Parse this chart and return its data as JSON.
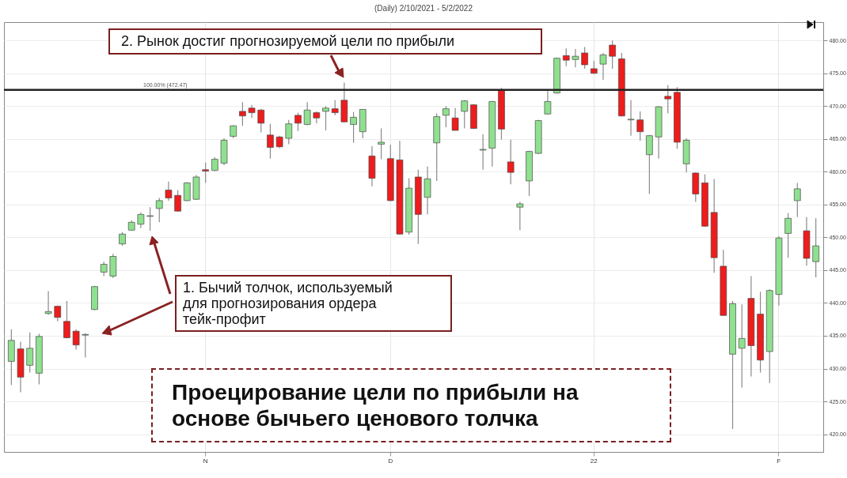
{
  "chart_data": {
    "type": "candlestick",
    "title": "(Daily) 2/10/2021 - 5/2/2022",
    "categories": [
      null,
      null,
      null,
      null,
      null,
      null,
      null,
      null,
      null,
      null,
      null,
      null,
      null,
      null,
      null,
      null,
      null,
      null,
      null,
      null,
      null,
      "N",
      null,
      null,
      null,
      null,
      null,
      null,
      null,
      null,
      null,
      null,
      null,
      null,
      null,
      null,
      null,
      null,
      null,
      null,
      null,
      "D",
      null,
      null,
      null,
      null,
      null,
      null,
      null,
      null,
      null,
      null,
      null,
      null,
      null,
      null,
      null,
      null,
      null,
      null,
      null,
      null,
      null,
      "22",
      null,
      null,
      null,
      null,
      null,
      null,
      null,
      null,
      null,
      null,
      null,
      null,
      null,
      null,
      null,
      null,
      null,
      null,
      null,
      "F",
      null,
      null,
      null,
      null
    ],
    "ohlc": [
      [
        431.1,
        436.0,
        427.5,
        434.3
      ],
      [
        433.0,
        434.1,
        426.4,
        428.7
      ],
      [
        430.5,
        435.5,
        429.4,
        433.1
      ],
      [
        429.3,
        435.3,
        427.6,
        434.9
      ],
      [
        438.4,
        441.8,
        438.2,
        438.7
      ],
      [
        439.5,
        439.6,
        437.2,
        437.8
      ],
      [
        437.2,
        440.3,
        434.6,
        434.7
      ],
      [
        435.7,
        436.0,
        432.9,
        433.6
      ],
      [
        435.1,
        435.4,
        431.7,
        435.2
      ],
      [
        439.0,
        442.6,
        438.9,
        442.5
      ],
      [
        444.7,
        446.3,
        444.1,
        445.9
      ],
      [
        444.1,
        447.5,
        443.8,
        447.1
      ],
      [
        449.0,
        450.8,
        448.7,
        450.5
      ],
      [
        451.1,
        452.6,
        451.0,
        452.3
      ],
      [
        452.0,
        453.8,
        451.4,
        453.5
      ],
      [
        453.2,
        454.6,
        451.0,
        453.3
      ],
      [
        454.4,
        456.0,
        452.3,
        455.6
      ],
      [
        457.2,
        458.5,
        455.6,
        456.0
      ],
      [
        456.4,
        457.2,
        453.9,
        454.0
      ],
      [
        455.6,
        458.4,
        455.5,
        458.3
      ],
      [
        455.8,
        459.5,
        455.7,
        459.2
      ],
      [
        460.3,
        461.4,
        458.3,
        460.1
      ],
      [
        460.2,
        462.2,
        460.1,
        461.9
      ],
      [
        461.3,
        465.1,
        461.0,
        464.8
      ],
      [
        465.4,
        467.1,
        465.1,
        467.0
      ],
      [
        469.2,
        470.6,
        467.0,
        468.5
      ],
      [
        469.7,
        470.2,
        468.2,
        469.0
      ],
      [
        469.4,
        469.6,
        466.0,
        467.4
      ],
      [
        465.6,
        467.3,
        462.0,
        463.7
      ],
      [
        465.3,
        465.5,
        463.6,
        463.8
      ],
      [
        465.1,
        467.9,
        464.2,
        467.3
      ],
      [
        468.6,
        469.0,
        466.2,
        467.4
      ],
      [
        467.2,
        470.6,
        467.1,
        469.4
      ],
      [
        469.0,
        469.2,
        467.4,
        468.2
      ],
      [
        469.2,
        470.0,
        466.3,
        469.7
      ],
      [
        469.6,
        470.9,
        468.6,
        469.0
      ],
      [
        470.9,
        473.6,
        467.5,
        467.6
      ],
      [
        467.2,
        469.1,
        464.4,
        468.3
      ],
      [
        466.1,
        469.5,
        465.1,
        469.5
      ],
      [
        462.4,
        463.9,
        457.8,
        459.0
      ],
      [
        464.2,
        466.6,
        461.9,
        464.5
      ],
      [
        462.0,
        464.1,
        455.5,
        455.6
      ],
      [
        461.8,
        464.7,
        450.4,
        450.5
      ],
      [
        450.8,
        459.0,
        450.4,
        457.5
      ],
      [
        459.2,
        460.3,
        449.0,
        453.5
      ],
      [
        456.1,
        460.8,
        453.5,
        458.9
      ],
      [
        464.4,
        468.9,
        458.6,
        468.4
      ],
      [
        468.6,
        470.0,
        466.8,
        469.6
      ],
      [
        468.2,
        469.7,
        466.3,
        466.3
      ],
      [
        469.2,
        470.9,
        466.6,
        470.8
      ],
      [
        470.2,
        470.3,
        466.5,
        466.6
      ],
      [
        463.3,
        465.7,
        460.3,
        463.4
      ],
      [
        463.6,
        470.8,
        460.8,
        470.7
      ],
      [
        472.5,
        472.8,
        464.9,
        466.5
      ],
      [
        461.5,
        464.9,
        458.1,
        459.9
      ],
      [
        454.6,
        455.4,
        451.1,
        455.1
      ],
      [
        458.6,
        463.2,
        456.3,
        463.1
      ],
      [
        462.8,
        467.9,
        462.7,
        467.8
      ],
      [
        468.8,
        472.3,
        468.7,
        470.7
      ],
      [
        472.0,
        477.4,
        471.9,
        477.3
      ],
      [
        477.7,
        478.8,
        476.1,
        477.0
      ],
      [
        477.1,
        478.7,
        475.9,
        477.6
      ],
      [
        478.1,
        479.0,
        475.7,
        476.3
      ],
      [
        475.7,
        476.9,
        474.9,
        475.0
      ],
      [
        476.4,
        478.1,
        474.0,
        477.8
      ],
      [
        479.3,
        480.0,
        475.7,
        477.6
      ],
      [
        477.2,
        478.1,
        468.4,
        468.5
      ],
      [
        467.9,
        470.9,
        465.5,
        468.0
      ],
      [
        467.9,
        469.2,
        464.7,
        466.1
      ],
      [
        462.6,
        465.6,
        456.6,
        465.5
      ],
      [
        465.3,
        470.0,
        462.0,
        469.9
      ],
      [
        471.5,
        473.2,
        468.9,
        471.1
      ],
      [
        472.1,
        472.9,
        463.5,
        464.5
      ],
      [
        461.2,
        465.1,
        459.9,
        464.8
      ],
      [
        459.8,
        459.9,
        455.4,
        456.6
      ],
      [
        458.3,
        459.6,
        451.6,
        451.7
      ],
      [
        453.8,
        458.9,
        444.6,
        446.9
      ],
      [
        445.6,
        448.1,
        438.0,
        438.1
      ],
      [
        432.2,
        440.3,
        420.8,
        439.9
      ],
      [
        433.1,
        439.8,
        427.1,
        434.6
      ],
      [
        440.7,
        444.1,
        428.8,
        433.5
      ],
      [
        438.3,
        441.7,
        429.4,
        431.3
      ],
      [
        432.6,
        442.1,
        427.8,
        441.9
      ],
      [
        441.3,
        450.2,
        439.6,
        449.9
      ],
      [
        450.6,
        453.7,
        446.9,
        452.9
      ],
      [
        455.6,
        458.3,
        453.1,
        457.4
      ],
      [
        451.0,
        453.1,
        445.7,
        446.8
      ],
      [
        446.3,
        452.9,
        443.9,
        448.7
      ]
    ],
    "colors": [
      "#8fe08f",
      "#ee1c1c",
      "#8fe08f",
      "#8fe08f",
      "#8fe08f",
      "#ee1c1c",
      "#ee1c1c",
      "#ee1c1c",
      "#8fe08f",
      "#8fe08f",
      "#8fe08f",
      "#8fe08f",
      "#8fe08f",
      "#8fe08f",
      "#8fe08f",
      "#8fe08f",
      "#8fe08f",
      "#ee1c1c",
      "#ee1c1c",
      "#8fe08f",
      "#8fe08f",
      "#ee1c1c",
      "#8fe08f",
      "#8fe08f",
      "#8fe08f",
      "#ee1c1c",
      "#ee1c1c",
      "#ee1c1c",
      "#ee1c1c",
      "#ee1c1c",
      "#8fe08f",
      "#ee1c1c",
      "#8fe08f",
      "#ee1c1c",
      "#8fe08f",
      "#ee1c1c",
      "#ee1c1c",
      "#8fe08f",
      "#8fe08f",
      "#ee1c1c",
      "#8fe08f",
      "#ee1c1c",
      "#ee1c1c",
      "#8fe08f",
      "#ee1c1c",
      "#8fe08f",
      "#8fe08f",
      "#8fe08f",
      "#ee1c1c",
      "#8fe08f",
      "#ee1c1c",
      "#8fe08f",
      "#8fe08f",
      "#ee1c1c",
      "#ee1c1c",
      "#8fe08f",
      "#8fe08f",
      "#8fe08f",
      "#8fe08f",
      "#8fe08f",
      "#ee1c1c",
      "#8fe08f",
      "#ee1c1c",
      "#ee1c1c",
      "#8fe08f",
      "#ee1c1c",
      "#ee1c1c",
      "#8fe08f",
      "#ee1c1c",
      "#8fe08f",
      "#8fe08f",
      "#ee1c1c",
      "#ee1c1c",
      "#8fe08f",
      "#ee1c1c",
      "#ee1c1c",
      "#ee1c1c",
      "#ee1c1c",
      "#8fe08f",
      "#8fe08f",
      "#ee1c1c",
      "#ee1c1c",
      "#8fe08f",
      "#8fe08f",
      "#8fe08f",
      "#8fe08f",
      "#ee1c1c",
      "#8fe08f"
    ],
    "ylim": [
      417.3,
      482.8
    ],
    "yticks": [
      {
        "value": 420,
        "label": "420.00"
      },
      {
        "value": 425,
        "label": "425.00"
      },
      {
        "value": 430,
        "label": "430.00"
      },
      {
        "value": 435,
        "label": "435.00"
      },
      {
        "value": 440,
        "label": "440.00"
      },
      {
        "value": 445,
        "label": "445.00"
      },
      {
        "value": 450,
        "label": "450.00"
      },
      {
        "value": 455,
        "label": "455.00"
      },
      {
        "value": 460,
        "label": "460.00"
      },
      {
        "value": 465,
        "label": "465.00"
      },
      {
        "value": 470,
        "label": "470.00"
      },
      {
        "value": 475,
        "label": "475.00"
      },
      {
        "value": 480,
        "label": "480.00"
      }
    ],
    "grid": true,
    "ref_lines": [
      {
        "axis": "y",
        "value": 472.47,
        "label": "100.00% (472.47)",
        "color": "#222222"
      }
    ],
    "annotations": [
      "2. Рынок достиг прогнозируемой цели по прибыли",
      "1. Бычий толчок, используемый для прогнозирования ордера тейк-профит",
      "Проецирование цели по прибыли на основе бычьего ценового толчка"
    ]
  }
}
